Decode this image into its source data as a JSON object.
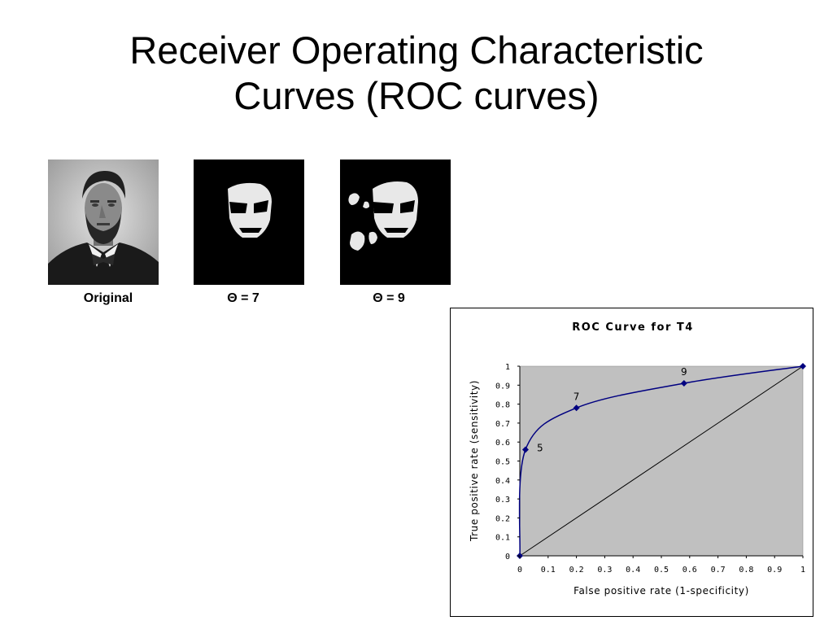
{
  "slide": {
    "title_line1": "Receiver Operating Characteristic",
    "title_line2": "Curves (ROC curves)"
  },
  "images": [
    {
      "caption": "Original",
      "kind": "portrait"
    },
    {
      "caption": "Θ = 7",
      "kind": "threshold-mask"
    },
    {
      "caption": "Θ = 9",
      "kind": "threshold-mask-noisy"
    }
  ],
  "chart_data": {
    "type": "line",
    "title": "ROC Curve for T4",
    "xlabel": "False positive rate (1-specificity)",
    "ylabel": "True positive rate (sensitivity)",
    "xlim": [
      0,
      1
    ],
    "ylim": [
      0,
      1
    ],
    "x_ticks": [
      "0",
      "0.1",
      "0.2",
      "0.3",
      "0.4",
      "0.5",
      "0.6",
      "0.7",
      "0.8",
      "0.9",
      "1"
    ],
    "y_ticks": [
      "0",
      "0.1",
      "0.2",
      "0.3",
      "0.4",
      "0.5",
      "0.6",
      "0.7",
      "0.8",
      "0.9",
      "1"
    ],
    "grid": false,
    "plot_background": "#c0c0c0",
    "series": [
      {
        "color": "#000080",
        "points": [
          {
            "x": 0,
            "y": 0,
            "label": ""
          },
          {
            "x": 0.02,
            "y": 0.56,
            "label": "5"
          },
          {
            "x": 0.2,
            "y": 0.78,
            "label": "7"
          },
          {
            "x": 0.58,
            "y": 0.91,
            "label": "9"
          },
          {
            "x": 1,
            "y": 1,
            "label": ""
          }
        ]
      }
    ],
    "reference_line": {
      "from": [
        0,
        0
      ],
      "to": [
        1,
        1
      ],
      "color": "#000000"
    }
  }
}
